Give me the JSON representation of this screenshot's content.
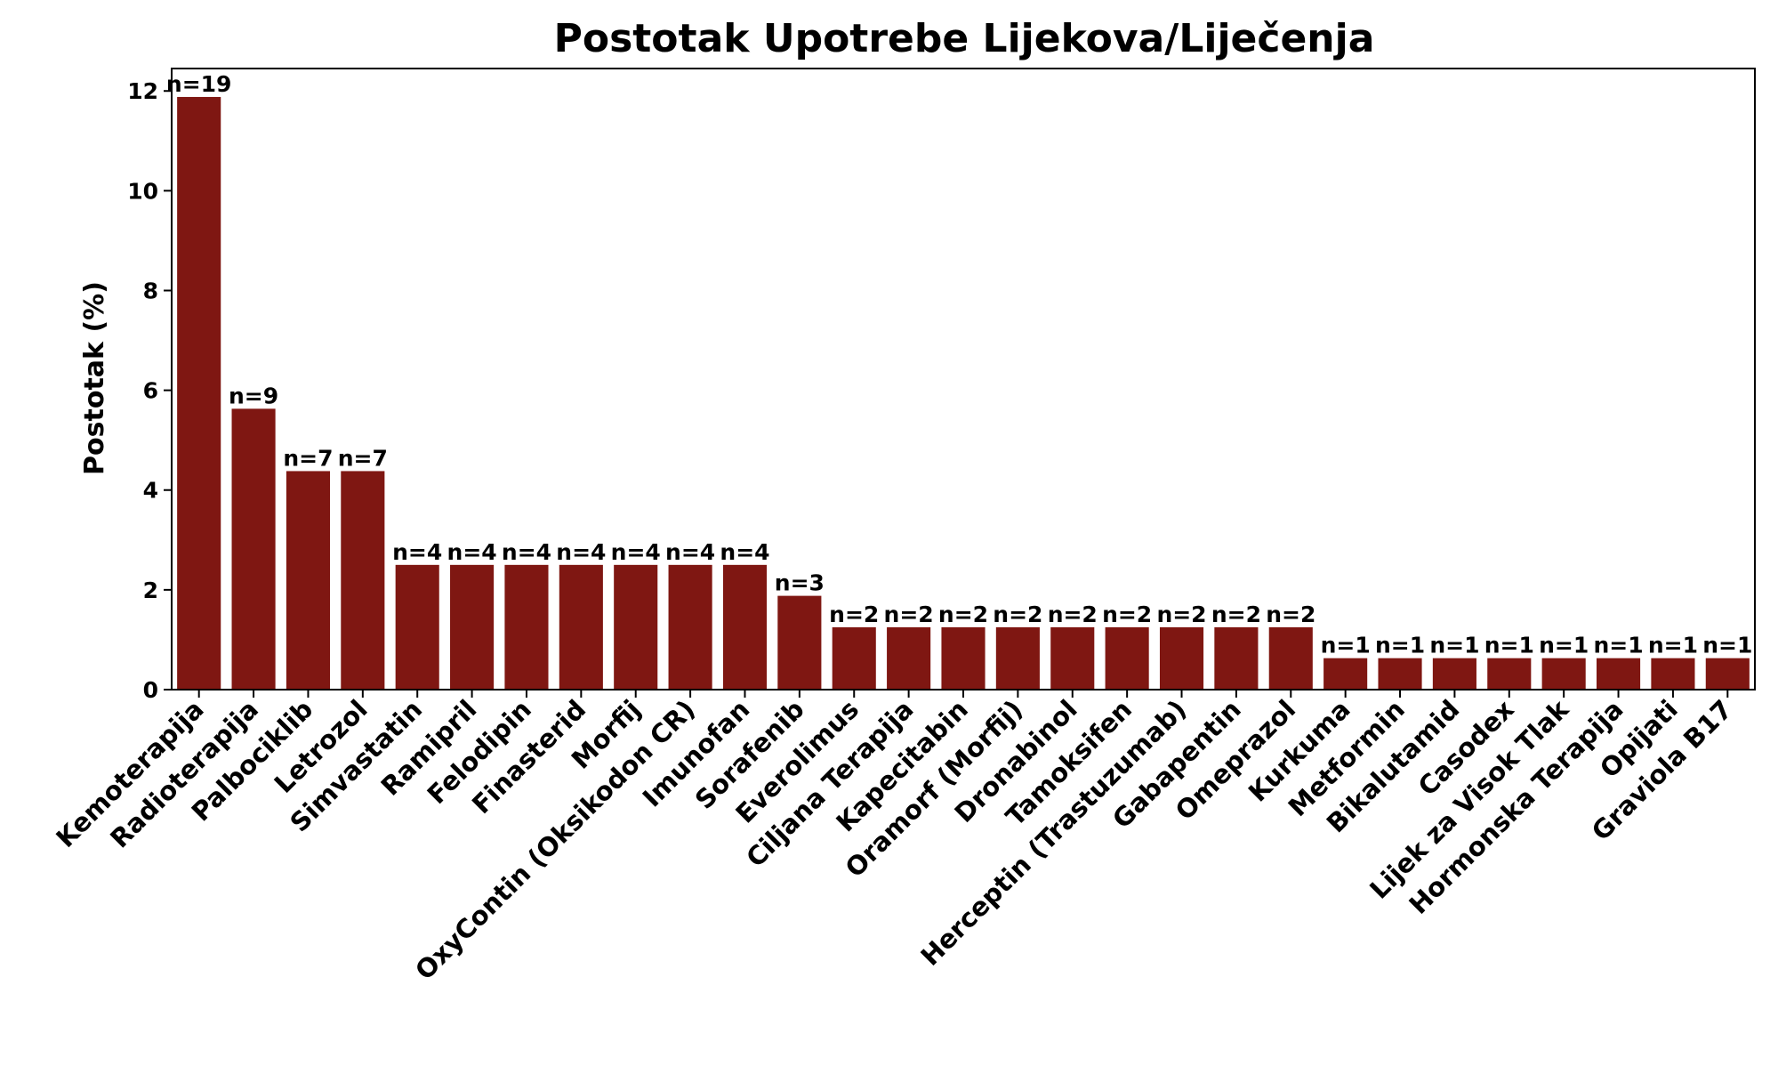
{
  "chart_data": {
    "type": "bar",
    "title": "Postotak Upotrebe Lijekova/Liječenja",
    "xlabel": "",
    "ylabel": "Postotak (%)",
    "ylim": [
      0,
      12.45
    ],
    "yticks": [
      0,
      2,
      4,
      6,
      8,
      10,
      12
    ],
    "grid": false,
    "bar_color": "#7f1712",
    "categories": [
      "Kemoterapija",
      "Radioterapija",
      "Palbociklib",
      "Letrozol",
      "Simvastatin",
      "Ramipril",
      "Felodipin",
      "Finasterid",
      "Morfij",
      "OxyContin (Oksikodon CR)",
      "Imunofan",
      "Sorafenib",
      "Everolimus",
      "Ciljana Terapija",
      "Kapecitabin",
      "Oramorf (Morfij)",
      "Dronabinol",
      "Tamoksifen",
      "Herceptin (Trastuzumab)",
      "Gabapentin",
      "Omeprazol",
      "Kurkuma",
      "Metformin",
      "Bikalutamid",
      "Casodex",
      "Lijek za Visok Tlak",
      "Hormonska Terapija",
      "Opijati",
      "Graviola B17"
    ],
    "values": [
      11.88,
      5.63,
      4.38,
      4.38,
      2.5,
      2.5,
      2.5,
      2.5,
      2.5,
      2.5,
      2.5,
      1.88,
      1.25,
      1.25,
      1.25,
      1.25,
      1.25,
      1.25,
      1.25,
      1.25,
      1.25,
      0.63,
      0.63,
      0.63,
      0.63,
      0.63,
      0.63,
      0.63,
      0.63
    ],
    "data_labels": [
      "n=19",
      "n=9",
      "n=7",
      "n=7",
      "n=4",
      "n=4",
      "n=4",
      "n=4",
      "n=4",
      "n=4",
      "n=4",
      "n=3",
      "n=2",
      "n=2",
      "n=2",
      "n=2",
      "n=2",
      "n=2",
      "n=2",
      "n=2",
      "n=2",
      "n=1",
      "n=1",
      "n=1",
      "n=1",
      "n=1",
      "n=1",
      "n=1",
      "n=1"
    ]
  }
}
